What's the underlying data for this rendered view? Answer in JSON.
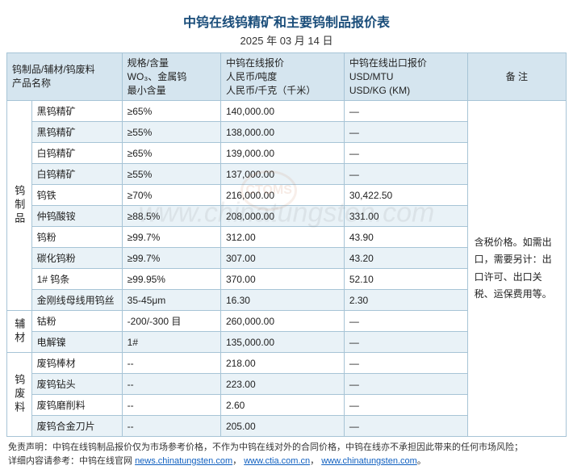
{
  "title": "中钨在线钨精矿和主要钨制品报价表",
  "date": "2025 年 03 月 14 日",
  "headers": {
    "col0": "钨制品/辅材/钨废料\n产品名称",
    "col2": "规格/含量\nWO₃、金属钨\n最小含量",
    "col3": "中钨在线报价\n人民币/吨度\n人民币/千克（千米）",
    "col4": "中钨在线出口报价\nUSD/MTU\nUSD/KG (KM)",
    "col5": "备 注"
  },
  "groups": [
    {
      "label": "钨制品",
      "rows": [
        {
          "name": "黑钨精矿",
          "spec": "≥65%",
          "rmb": "140,000.00",
          "usd": "—"
        },
        {
          "name": "黑钨精矿",
          "spec": "≥55%",
          "rmb": "138,000.00",
          "usd": "—"
        },
        {
          "name": "白钨精矿",
          "spec": "≥65%",
          "rmb": "139,000.00",
          "usd": "—"
        },
        {
          "name": "白钨精矿",
          "spec": "≥55%",
          "rmb": "137,000.00",
          "usd": "—"
        },
        {
          "name": "钨铁",
          "spec": "≥70%",
          "rmb": "216,000.00",
          "usd": "30,422.50"
        },
        {
          "name": "仲钨酸铵",
          "spec": "≥88.5%",
          "rmb": "208,000.00",
          "usd": "331.00"
        },
        {
          "name": "钨粉",
          "spec": "≥99.7%",
          "rmb": "312.00",
          "usd": "43.90"
        },
        {
          "name": "碳化钨粉",
          "spec": "≥99.7%",
          "rmb": "307.00",
          "usd": "43.20"
        },
        {
          "name": "1# 钨条",
          "spec": "≥99.95%",
          "rmb": "370.00",
          "usd": "52.10"
        },
        {
          "name": "金刚线母线用钨丝",
          "spec": "35-45μm",
          "rmb": "16.30",
          "usd": "2.30"
        }
      ]
    },
    {
      "label": "辅材",
      "rows": [
        {
          "name": "钴粉",
          "spec": "-200/-300 目",
          "rmb": "260,000.00",
          "usd": "—"
        },
        {
          "name": "电解镍",
          "spec": "1#",
          "rmb": "135,000.00",
          "usd": "—"
        }
      ]
    },
    {
      "label": "钨废料",
      "rows": [
        {
          "name": "废钨棒材",
          "spec": "--",
          "rmb": "218.00",
          "usd": "—"
        },
        {
          "name": "废钨钻头",
          "spec": "--",
          "rmb": "223.00",
          "usd": "—"
        },
        {
          "name": "废钨磨削料",
          "spec": "--",
          "rmb": "2.60",
          "usd": "—"
        },
        {
          "name": "废钨合金刀片",
          "spec": "--",
          "rmb": "205.00",
          "usd": "—"
        }
      ]
    }
  ],
  "remark": "含税价格。如需出口，需要另计：出口许可、出口关税、运保费用等。",
  "footer": {
    "disclaimer": "免责声明：中钨在线钨制品报价仅为市场参考价格，不作为中钨在线对外的合同价格，中钨在线亦不承担因此带来的任何市场风险；",
    "detail_prefix": "详细内容请参考：中钨在线官网 ",
    "links": [
      "news.chinatungsten.com",
      "www.ctia.com.cn",
      "www.chinatungsten.com"
    ]
  },
  "watermark": "www.chinatungsten.com",
  "watermark_logo": "CTOMS",
  "colors": {
    "header_bg": "#d5e5ef",
    "row_alt_bg": "#e9f2f7",
    "border": "#a7c4d6",
    "title_color": "#1a4d7a"
  }
}
